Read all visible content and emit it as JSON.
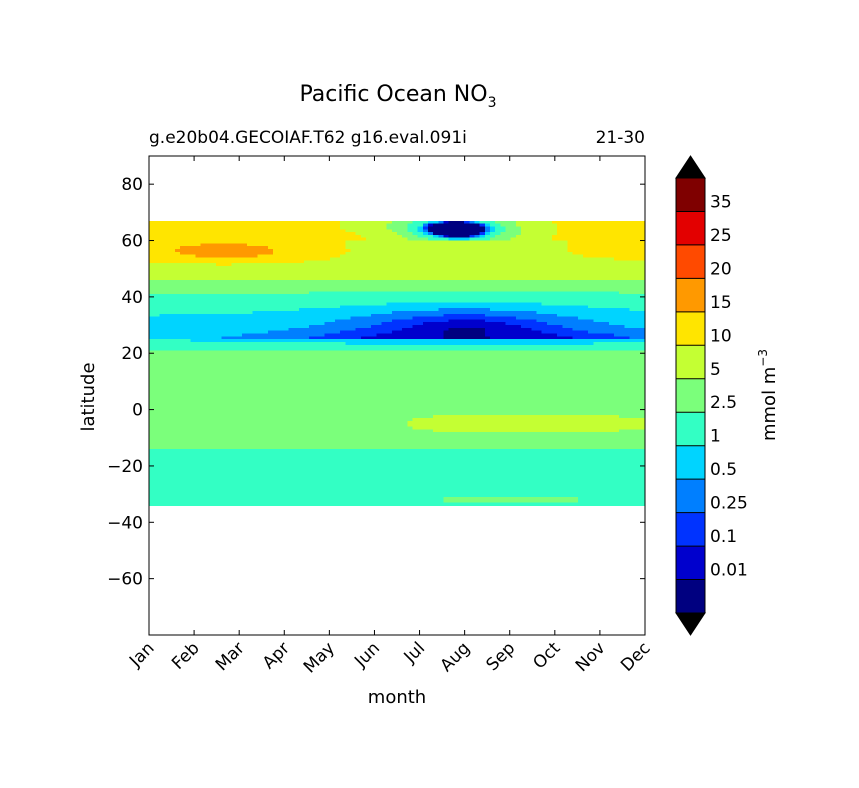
{
  "chart_data": {
    "type": "heatmap",
    "title": "Pacific Ocean NO",
    "title_subscript": "3",
    "subtitle_left": "g.e20b04.GECOIAF.T62 g16.eval.091i",
    "subtitle_right": "21-30",
    "xlabel": "month",
    "ylabel": "latitude",
    "x": [
      "Jan",
      "Feb",
      "Mar",
      "Apr",
      "May",
      "Jun",
      "Jul",
      "Aug",
      "Sep",
      "Oct",
      "Nov",
      "Dec"
    ],
    "ylim": [
      -80,
      90
    ],
    "yticks": [
      -60,
      -40,
      -20,
      0,
      20,
      40,
      60,
      80
    ],
    "data_lat_range": [
      -34,
      67
    ],
    "colorbar": {
      "label": "mmol m",
      "label_superscript": "−3",
      "levels": [
        "0.01",
        "0.1",
        "0.25",
        "0.5",
        "1",
        "2.5",
        "5",
        "10",
        "15",
        "20",
        "25",
        "35"
      ],
      "colors": [
        "#000080",
        "#0000cd",
        "#0033ff",
        "#007fff",
        "#00d4ff",
        "#33ffc4",
        "#7bff7b",
        "#c4ff33",
        "#ffe500",
        "#ff9900",
        "#ff4a00",
        "#e30000",
        "#7f0000"
      ],
      "extend": "both"
    },
    "grid": false
  }
}
